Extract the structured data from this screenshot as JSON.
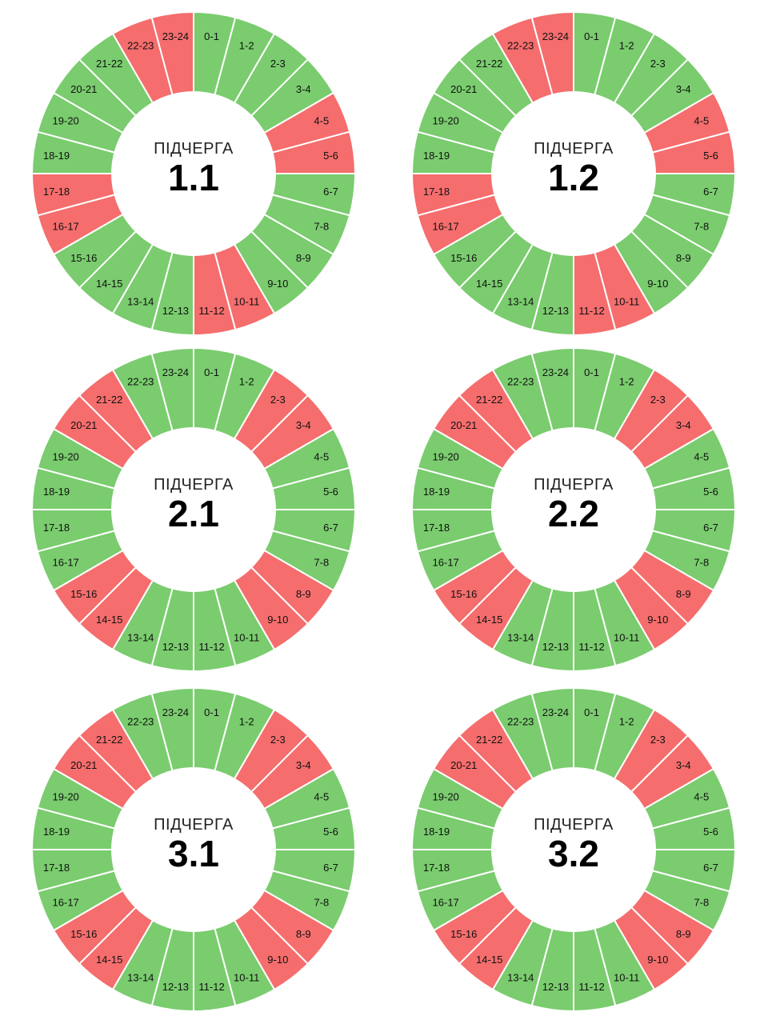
{
  "heading_word": "ПІДЧЕРГА",
  "colors": {
    "on": "#7acc6e",
    "off": "#f56d6d",
    "divider": "#ffffff"
  },
  "chart_data": [
    {
      "type": "pie",
      "id": "1.1",
      "categories": [
        "0-1",
        "1-2",
        "2-3",
        "3-4",
        "4-5",
        "5-6",
        "6-7",
        "7-8",
        "8-9",
        "9-10",
        "10-11",
        "11-12",
        "12-13",
        "13-14",
        "14-15",
        "15-16",
        "16-17",
        "17-18",
        "18-19",
        "19-20",
        "20-21",
        "21-22",
        "22-23",
        "23-24"
      ],
      "status": [
        "on",
        "on",
        "on",
        "on",
        "off",
        "off",
        "on",
        "on",
        "on",
        "on",
        "off",
        "off",
        "on",
        "on",
        "on",
        "on",
        "off",
        "off",
        "on",
        "on",
        "on",
        "on",
        "off",
        "off"
      ]
    },
    {
      "type": "pie",
      "id": "1.2",
      "categories": [
        "0-1",
        "1-2",
        "2-3",
        "3-4",
        "4-5",
        "5-6",
        "6-7",
        "7-8",
        "8-9",
        "9-10",
        "10-11",
        "11-12",
        "12-13",
        "13-14",
        "14-15",
        "15-16",
        "16-17",
        "17-18",
        "18-19",
        "19-20",
        "20-21",
        "21-22",
        "22-23",
        "23-24"
      ],
      "status": [
        "on",
        "on",
        "on",
        "on",
        "off",
        "off",
        "on",
        "on",
        "on",
        "on",
        "off",
        "off",
        "on",
        "on",
        "on",
        "on",
        "off",
        "off",
        "on",
        "on",
        "on",
        "on",
        "off",
        "off"
      ]
    },
    {
      "type": "pie",
      "id": "2.1",
      "categories": [
        "0-1",
        "1-2",
        "2-3",
        "3-4",
        "4-5",
        "5-6",
        "6-7",
        "7-8",
        "8-9",
        "9-10",
        "10-11",
        "11-12",
        "12-13",
        "13-14",
        "14-15",
        "15-16",
        "16-17",
        "17-18",
        "18-19",
        "19-20",
        "20-21",
        "21-22",
        "22-23",
        "23-24"
      ],
      "status": [
        "on",
        "on",
        "off",
        "off",
        "on",
        "on",
        "on",
        "on",
        "off",
        "off",
        "on",
        "on",
        "on",
        "on",
        "off",
        "off",
        "on",
        "on",
        "on",
        "on",
        "off",
        "off",
        "on",
        "on"
      ]
    },
    {
      "type": "pie",
      "id": "2.2",
      "categories": [
        "0-1",
        "1-2",
        "2-3",
        "3-4",
        "4-5",
        "5-6",
        "6-7",
        "7-8",
        "8-9",
        "9-10",
        "10-11",
        "11-12",
        "12-13",
        "13-14",
        "14-15",
        "15-16",
        "16-17",
        "17-18",
        "18-19",
        "19-20",
        "20-21",
        "21-22",
        "22-23",
        "23-24"
      ],
      "status": [
        "on",
        "on",
        "off",
        "off",
        "on",
        "on",
        "on",
        "on",
        "off",
        "off",
        "on",
        "on",
        "on",
        "on",
        "off",
        "off",
        "on",
        "on",
        "on",
        "on",
        "off",
        "off",
        "on",
        "on"
      ]
    },
    {
      "type": "pie",
      "id": "3.1",
      "categories": [
        "0-1",
        "1-2",
        "2-3",
        "3-4",
        "4-5",
        "5-6",
        "6-7",
        "7-8",
        "8-9",
        "9-10",
        "10-11",
        "11-12",
        "12-13",
        "13-14",
        "14-15",
        "15-16",
        "16-17",
        "17-18",
        "18-19",
        "19-20",
        "20-21",
        "21-22",
        "22-23",
        "23-24"
      ],
      "status": [
        "on",
        "on",
        "off",
        "off",
        "on",
        "on",
        "on",
        "on",
        "off",
        "off",
        "on",
        "on",
        "on",
        "on",
        "off",
        "off",
        "on",
        "on",
        "on",
        "on",
        "off",
        "off",
        "on",
        "on"
      ]
    },
    {
      "type": "pie",
      "id": "3.2",
      "categories": [
        "0-1",
        "1-2",
        "2-3",
        "3-4",
        "4-5",
        "5-6",
        "6-7",
        "7-8",
        "8-9",
        "9-10",
        "10-11",
        "11-12",
        "12-13",
        "13-14",
        "14-15",
        "15-16",
        "16-17",
        "17-18",
        "18-19",
        "19-20",
        "20-21",
        "21-22",
        "22-23",
        "23-24"
      ],
      "status": [
        "on",
        "on",
        "off",
        "off",
        "on",
        "on",
        "on",
        "on",
        "off",
        "off",
        "on",
        "on",
        "on",
        "on",
        "off",
        "off",
        "on",
        "on",
        "on",
        "on",
        "off",
        "off",
        "on",
        "on"
      ]
    }
  ]
}
